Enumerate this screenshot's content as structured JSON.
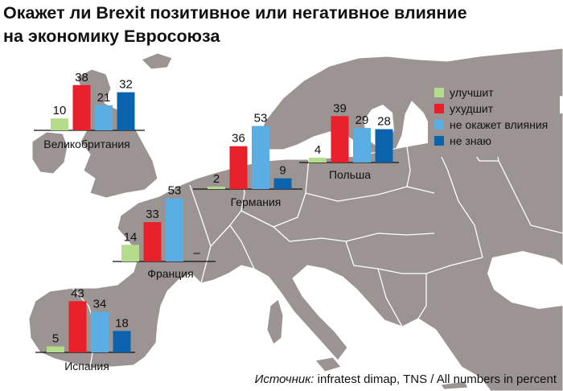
{
  "title_line1": "Окажет ли Brexit позитивное или негативное влияние",
  "title_line2": "на экономику Евросоюза",
  "source_label": "Источник:",
  "source_text": "infratest dimap, TNS / All numbers in percent",
  "colors": {
    "improve": "#b5dc8a",
    "worsen": "#e8202a",
    "no_effect": "#5aaee4",
    "dont_know": "#0b63ad",
    "land": "#9b9492",
    "sea": "#ffffff",
    "border": "#ffffff"
  },
  "chart_data": {
    "type": "bar",
    "title": "Окажет ли Brexit позитивное или негативное влияние на экономику Евросоюза",
    "legend_position": "top-right",
    "series_names": [
      "улучшит",
      "ухудшит",
      "не окажет влияния",
      "не знаю"
    ],
    "groups": [
      {
        "country": "Великобритания",
        "values": [
          10,
          38,
          21,
          32
        ],
        "labels": [
          "10",
          "38",
          "21",
          "32"
        ]
      },
      {
        "country": "Германия",
        "values": [
          2,
          36,
          53,
          9
        ],
        "labels": [
          "2",
          "36",
          "53",
          "9"
        ]
      },
      {
        "country": "Польша",
        "values": [
          4,
          39,
          29,
          28
        ],
        "labels": [
          "4",
          "39",
          "29",
          "28"
        ]
      },
      {
        "country": "Франция",
        "values": [
          14,
          33,
          53,
          null
        ],
        "labels": [
          "14",
          "33",
          "53",
          "–"
        ]
      },
      {
        "country": "Испания",
        "values": [
          5,
          43,
          34,
          18
        ],
        "labels": [
          "5",
          "43",
          "34",
          "18"
        ]
      }
    ]
  }
}
